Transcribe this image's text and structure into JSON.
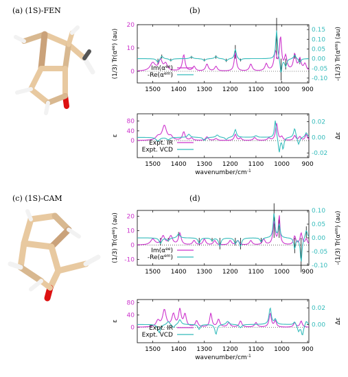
{
  "labels": {
    "a": "(a) (1S)-FEN",
    "b": "(b)",
    "c": "(c) (1S)-CAM",
    "d": "(d)"
  },
  "colors": {
    "magenta": "#cc33cc",
    "cyan": "#33bbbb",
    "black": "#000000",
    "carbon": "#e8c9a0",
    "hydrogen": "#f2f2f2",
    "oxygen": "#dd1111"
  },
  "chart_data": [
    {
      "id": "b-top",
      "type": "line",
      "xlabel": "",
      "ylabel_left": "(1/3) Tr(α^ee) (au)",
      "ylabel_right": "-(1/3) Tr(α^em) (au)",
      "xlim": [
        1560,
        895
      ],
      "xticks": [
        1500,
        1400,
        1300,
        1200,
        1100,
        1000,
        900
      ],
      "ylim_left": [
        -5,
        20
      ],
      "yticks_left": [
        0,
        10,
        20
      ],
      "ylim_right": [
        -0.125,
        0.175
      ],
      "yticks_right": [
        -0.1,
        -0.05,
        0,
        0.05,
        0.1,
        0.15
      ],
      "legend": [
        "Im(α^ee)",
        "-Re(α^em)"
      ],
      "series": [
        {
          "name": "Im(α^ee)",
          "axis": "left",
          "color": "magenta",
          "peaks": [
            [
              1500,
              3.5,
              12
            ],
            [
              1470,
              4.5,
              8
            ],
            [
              1450,
              3,
              8
            ],
            [
              1380,
              7,
              6
            ],
            [
              1340,
              2,
              6
            ],
            [
              1290,
              3,
              6
            ],
            [
              1255,
              2,
              6
            ],
            [
              1180,
              8,
              5
            ],
            [
              1120,
              3,
              6
            ],
            [
              1060,
              3,
              6
            ],
            [
              1025,
              8,
              6
            ],
            [
              1005,
              14,
              5
            ],
            [
              985,
              6,
              6
            ],
            [
              950,
              7,
              6
            ],
            [
              930,
              5,
              6
            ],
            [
              910,
              3,
              6
            ]
          ]
        },
        {
          "name": "-Re(α^em)",
          "axis": "right",
          "color": "cyan",
          "peaks": [
            [
              1480,
              -0.02,
              6
            ],
            [
              1465,
              0.015,
              6
            ],
            [
              1430,
              -0.01,
              6
            ],
            [
              1350,
              0.01,
              6
            ],
            [
              1300,
              -0.01,
              6
            ],
            [
              1255,
              0.012,
              6
            ],
            [
              1215,
              -0.012,
              6
            ],
            [
              1180,
              0.05,
              4
            ],
            [
              1160,
              -0.01,
              5
            ],
            [
              1020,
              0.15,
              4
            ],
            [
              1003,
              -0.08,
              4
            ],
            [
              985,
              -0.04,
              5
            ],
            [
              950,
              0.02,
              5
            ],
            [
              930,
              -0.02,
              5
            ]
          ]
        }
      ]
    },
    {
      "id": "b-bottom",
      "type": "line",
      "xlabel": "wavenumber/cm-1",
      "ylabel_left": "ε",
      "ylabel_right": "Δε",
      "xlim": [
        1560,
        895
      ],
      "xticks": [
        1500,
        1400,
        1300,
        1200,
        1100,
        1000,
        900
      ],
      "ylim_left": [
        -70,
        110
      ],
      "yticks_left": [
        0,
        40,
        80
      ],
      "ylim_right": [
        -0.026,
        0.03
      ],
      "yticks_right": [
        -0.02,
        0,
        0.02
      ],
      "legend": [
        "Expt. IR",
        "Expt. VCD"
      ],
      "series": [
        {
          "name": "Expt. IR",
          "axis": "left",
          "color": "magenta",
          "peaks": [
            [
              1480,
              15,
              10
            ],
            [
              1455,
              60,
              10
            ],
            [
              1430,
              15,
              8
            ],
            [
              1380,
              35,
              6
            ],
            [
              1350,
              10,
              6
            ],
            [
              1290,
              15,
              6
            ],
            [
              1255,
              8,
              6
            ],
            [
              1180,
              25,
              5
            ],
            [
              1160,
              10,
              5
            ],
            [
              1105,
              12,
              6
            ],
            [
              1050,
              10,
              6
            ],
            [
              1020,
              70,
              5
            ],
            [
              1000,
              15,
              5
            ],
            [
              950,
              20,
              5
            ],
            [
              930,
              15,
              5
            ],
            [
              905,
              25,
              5
            ]
          ]
        },
        {
          "name": "Expt. VCD",
          "axis": "right",
          "color": "cyan",
          "peaks": [
            [
              1480,
              -0.005,
              8
            ],
            [
              1440,
              -0.003,
              8
            ],
            [
              1360,
              0.004,
              6
            ],
            [
              1300,
              -0.004,
              6
            ],
            [
              1250,
              0.003,
              6
            ],
            [
              1215,
              -0.003,
              6
            ],
            [
              1180,
              0.01,
              5
            ],
            [
              1100,
              0.002,
              6
            ],
            [
              1025,
              0.023,
              4
            ],
            [
              1010,
              -0.02,
              4
            ],
            [
              995,
              -0.015,
              4
            ],
            [
              950,
              0.012,
              5
            ],
            [
              935,
              -0.01,
              5
            ],
            [
              905,
              0.006,
              5
            ]
          ]
        }
      ]
    },
    {
      "id": "d-top",
      "type": "line",
      "xlabel": "",
      "ylabel_left": "(1/3) Tr(α^ee) (au)",
      "ylabel_right": "-(1/3) Tr(α^em) (au)",
      "xlim": [
        1560,
        895
      ],
      "xticks": [
        1500,
        1400,
        1300,
        1200,
        1100,
        1000,
        900
      ],
      "ylim_left": [
        -14,
        24
      ],
      "yticks_left": [
        -10,
        0,
        10,
        20
      ],
      "ylim_right": [
        -0.1,
        0.1
      ],
      "yticks_right": [
        -0.1,
        -0.05,
        0,
        0.05,
        0.1
      ],
      "legend": [
        "Im(α^ee)",
        "-Re(α^em)"
      ],
      "series": [
        {
          "name": "Im(α^ee)",
          "axis": "left",
          "color": "magenta",
          "peaks": [
            [
              1500,
              4,
              10
            ],
            [
              1460,
              6,
              8
            ],
            [
              1430,
              6,
              8
            ],
            [
              1395,
              8,
              6
            ],
            [
              1340,
              3,
              6
            ],
            [
              1300,
              4,
              6
            ],
            [
              1260,
              3,
              6
            ],
            [
              1200,
              3,
              6
            ],
            [
              1170,
              3,
              6
            ],
            [
              1120,
              3,
              6
            ],
            [
              1070,
              4,
              6
            ],
            [
              1030,
              16,
              5
            ],
            [
              1010,
              20,
              4
            ],
            [
              950,
              6,
              5
            ],
            [
              925,
              8,
              5
            ],
            [
              905,
              4,
              5
            ]
          ]
        },
        {
          "name": "-Re(α^em)",
          "axis": "right",
          "color": "cyan",
          "peaks": [
            [
              1470,
              -0.02,
              6
            ],
            [
              1440,
              -0.01,
              6
            ],
            [
              1400,
              0.015,
              6
            ],
            [
              1320,
              -0.02,
              5
            ],
            [
              1270,
              -0.01,
              5
            ],
            [
              1240,
              -0.03,
              5
            ],
            [
              1180,
              -0.02,
              5
            ],
            [
              1160,
              -0.03,
              5
            ],
            [
              1080,
              -0.015,
              5
            ],
            [
              1030,
              0.09,
              4
            ],
            [
              1010,
              0.05,
              4
            ],
            [
              950,
              -0.04,
              4
            ],
            [
              925,
              -0.09,
              4
            ],
            [
              905,
              0.03,
              5
            ]
          ]
        }
      ]
    },
    {
      "id": "d-bottom",
      "type": "line",
      "xlabel": "wavenumber/cm-1",
      "ylabel_left": "ε",
      "ylabel_right": "Δε",
      "xlim": [
        1560,
        895
      ],
      "xticks": [
        1500,
        1400,
        1300,
        1200,
        1100,
        1000,
        900
      ],
      "ylim_left": [
        -50,
        90
      ],
      "yticks_left": [
        0,
        40,
        80
      ],
      "ylim_right": [
        -0.022,
        0.03
      ],
      "yticks_right": [
        0,
        0.02
      ],
      "legend": [
        "Expt. IR",
        "Expt. VCD"
      ],
      "series": [
        {
          "name": "Expt. IR",
          "axis": "left",
          "color": "magenta",
          "peaks": [
            [
              1480,
              20,
              8
            ],
            [
              1455,
              55,
              8
            ],
            [
              1420,
              40,
              7
            ],
            [
              1395,
              55,
              6
            ],
            [
              1375,
              40,
              6
            ],
            [
              1330,
              20,
              6
            ],
            [
              1275,
              45,
              5
            ],
            [
              1245,
              25,
              6
            ],
            [
              1205,
              15,
              6
            ],
            [
              1160,
              20,
              6
            ],
            [
              1100,
              15,
              6
            ],
            [
              1045,
              45,
              5
            ],
            [
              1025,
              20,
              5
            ],
            [
              950,
              15,
              5
            ],
            [
              925,
              20,
              5
            ]
          ]
        },
        {
          "name": "Expt. VCD",
          "axis": "right",
          "color": "cyan",
          "peaks": [
            [
              1475,
              -0.01,
              6
            ],
            [
              1440,
              0.004,
              6
            ],
            [
              1420,
              -0.004,
              6
            ],
            [
              1395,
              0.006,
              6
            ],
            [
              1320,
              -0.006,
              5
            ],
            [
              1255,
              -0.012,
              5
            ],
            [
              1210,
              0.004,
              6
            ],
            [
              1160,
              -0.004,
              6
            ],
            [
              1045,
              0.02,
              5
            ],
            [
              1025,
              0.006,
              5
            ],
            [
              950,
              0.004,
              5
            ],
            [
              935,
              -0.008,
              5
            ],
            [
              920,
              -0.013,
              5
            ],
            [
              905,
              0.005,
              5
            ]
          ]
        }
      ]
    }
  ]
}
